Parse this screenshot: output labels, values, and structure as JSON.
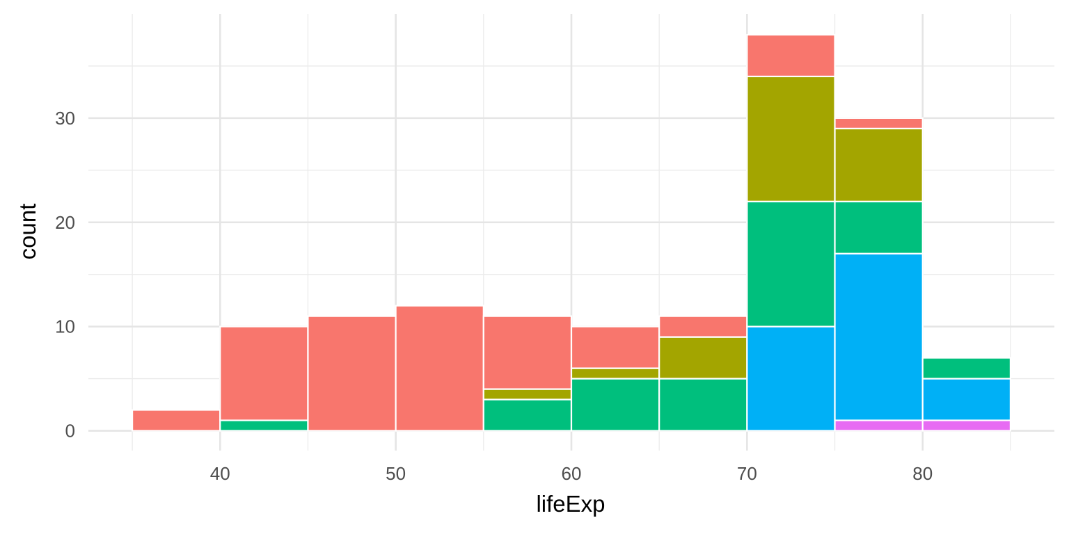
{
  "chart_data": {
    "type": "bar",
    "subtype": "stacked-histogram",
    "xlabel": "lifeExp",
    "ylabel": "count",
    "xlim": [
      32.5,
      87.5
    ],
    "ylim": [
      -1.9,
      40
    ],
    "x_ticks": [
      40,
      50,
      60,
      70,
      80
    ],
    "y_ticks": [
      0,
      10,
      20,
      30
    ],
    "bin_width": 5,
    "bins": [
      {
        "x0": 35,
        "x1": 40
      },
      {
        "x0": 40,
        "x1": 45
      },
      {
        "x0": 45,
        "x1": 50
      },
      {
        "x0": 50,
        "x1": 55
      },
      {
        "x0": 55,
        "x1": 60
      },
      {
        "x0": 60,
        "x1": 65
      },
      {
        "x0": 65,
        "x1": 70
      },
      {
        "x0": 70,
        "x1": 75
      },
      {
        "x0": 75,
        "x1": 80
      },
      {
        "x0": 80,
        "x1": 85
      }
    ],
    "series": [
      {
        "color": "#F8766D",
        "values": [
          2,
          9,
          11,
          12,
          7,
          4,
          2,
          4,
          1,
          0
        ]
      },
      {
        "color": "#A3A500",
        "values": [
          0,
          0,
          0,
          0,
          1,
          1,
          4,
          12,
          7,
          0
        ]
      },
      {
        "color": "#00BF7D",
        "values": [
          0,
          1,
          0,
          0,
          3,
          5,
          5,
          12,
          5,
          2
        ]
      },
      {
        "color": "#00B0F6",
        "values": [
          0,
          0,
          0,
          0,
          0,
          0,
          0,
          10,
          16,
          4
        ]
      },
      {
        "color": "#E76BF3",
        "values": [
          0,
          0,
          0,
          0,
          0,
          0,
          0,
          0,
          1,
          1
        ]
      }
    ],
    "grid": true,
    "legend": "none"
  }
}
